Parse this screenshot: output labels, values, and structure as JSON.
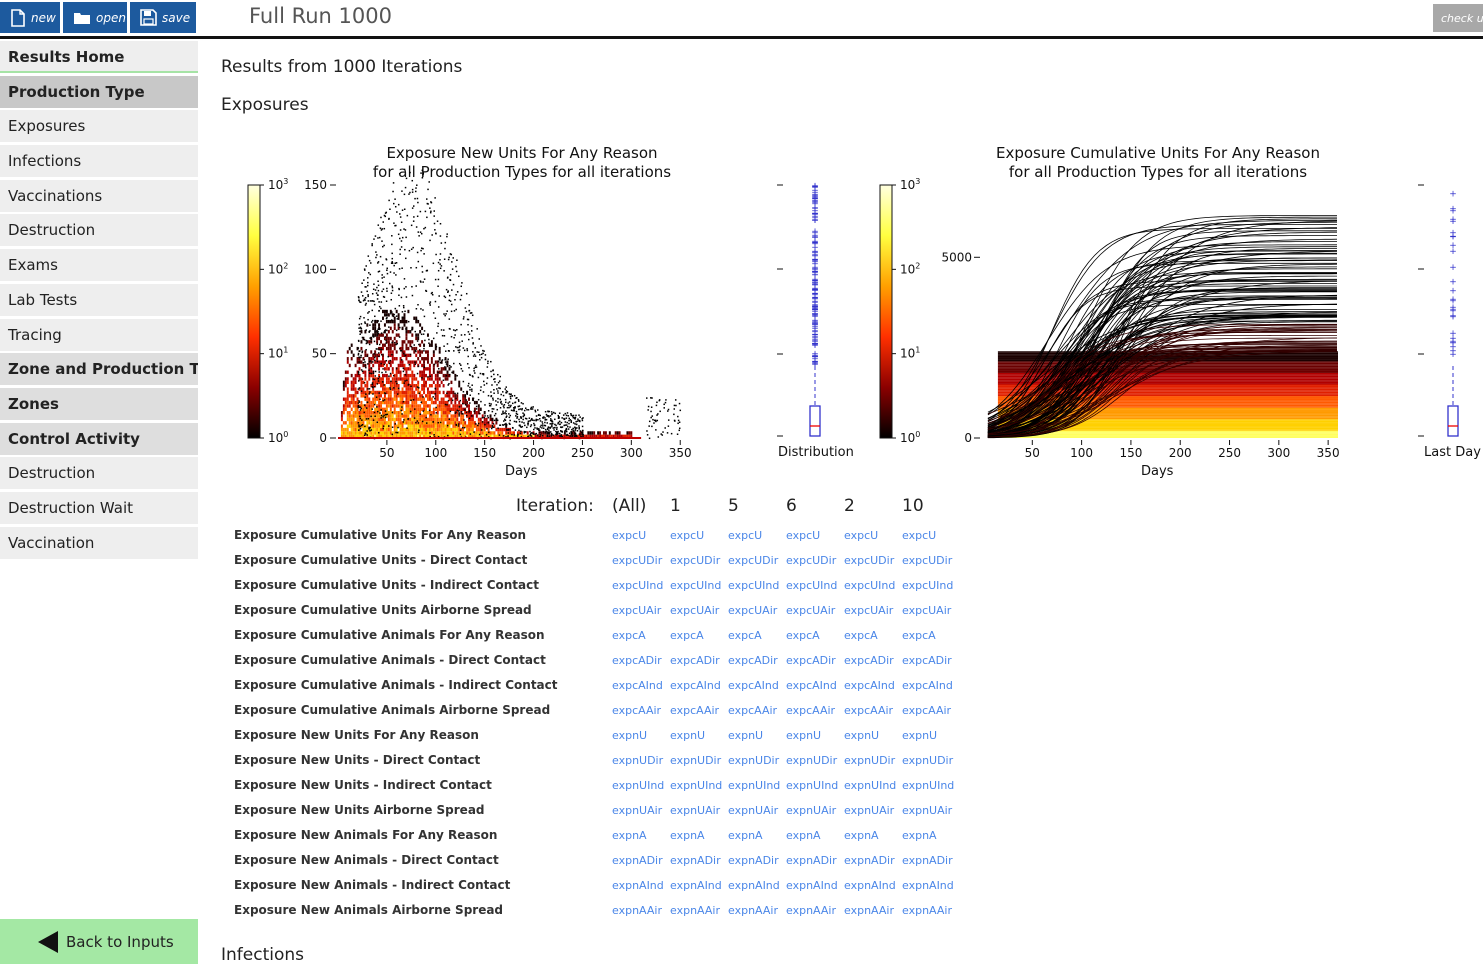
{
  "toolbar": {
    "new_label": "new",
    "open_label": "open",
    "save_label": "save",
    "check_label": "check up"
  },
  "page_title": "Full Run 1000",
  "sidebar": {
    "items": [
      {
        "label": "Results Home",
        "kind": "home"
      },
      {
        "label": "Production Type",
        "kind": "active"
      },
      {
        "label": "Exposures",
        "kind": "item"
      },
      {
        "label": "Infections",
        "kind": "item"
      },
      {
        "label": "Vaccinations",
        "kind": "item"
      },
      {
        "label": "Destruction",
        "kind": "item"
      },
      {
        "label": "Exams",
        "kind": "item"
      },
      {
        "label": "Lab Tests",
        "kind": "item"
      },
      {
        "label": "Tracing",
        "kind": "item"
      },
      {
        "label": "Zone and Production Type",
        "kind": "head"
      },
      {
        "label": "Zones",
        "kind": "head"
      },
      {
        "label": "Control Activity",
        "kind": "head"
      },
      {
        "label": "Destruction",
        "kind": "item"
      },
      {
        "label": "Destruction Wait",
        "kind": "item"
      },
      {
        "label": "Vaccination",
        "kind": "item"
      }
    ],
    "back_label": "Back to Inputs"
  },
  "main": {
    "results_heading": "Results from 1000 Iterations",
    "section_heading": "Exposures",
    "next_section_heading": "Infections",
    "iteration_label": "Iteration:",
    "iterations": [
      "(All)",
      "1",
      "5",
      "6",
      "2",
      "10"
    ],
    "rows": [
      {
        "label": "Exposure Cumulative Units For Any Reason",
        "code": "expcU"
      },
      {
        "label": "Exposure Cumulative Units - Direct Contact",
        "code": "expcUDir"
      },
      {
        "label": "Exposure Cumulative Units - Indirect Contact",
        "code": "expcUInd"
      },
      {
        "label": "Exposure Cumulative Units Airborne Spread",
        "code": "expcUAir"
      },
      {
        "label": "Exposure Cumulative Animals For Any Reason",
        "code": "expcA"
      },
      {
        "label": "Exposure Cumulative Animals - Direct Contact",
        "code": "expcADir"
      },
      {
        "label": "Exposure Cumulative Animals - Indirect Contact",
        "code": "expcAInd"
      },
      {
        "label": "Exposure Cumulative Animals Airborne Spread",
        "code": "expcAAir"
      },
      {
        "label": "Exposure New Units For Any Reason",
        "code": "expnU"
      },
      {
        "label": "Exposure New Units - Direct Contact",
        "code": "expnUDir"
      },
      {
        "label": "Exposure New Units - Indirect Contact",
        "code": "expnUInd"
      },
      {
        "label": "Exposure New Units Airborne Spread",
        "code": "expnUAir"
      },
      {
        "label": "Exposure New Animals For Any Reason",
        "code": "expnA"
      },
      {
        "label": "Exposure New Animals - Direct Contact",
        "code": "expnADir"
      },
      {
        "label": "Exposure New Animals - Indirect Contact",
        "code": "expnAInd"
      },
      {
        "label": "Exposure New Animals Airborne Spread",
        "code": "expnAAir"
      }
    ]
  },
  "chart_data": [
    {
      "type": "heatmap",
      "title_line1": "Exposure New Units For Any Reason",
      "title_line2": "for all Production Types for all iterations",
      "xlabel": "Days",
      "ylabel": "",
      "x_ticks": [
        "50",
        "100",
        "150",
        "200",
        "250",
        "300",
        "350"
      ],
      "y_ticks": [
        "0",
        "50",
        "100",
        "150"
      ],
      "colorbar_ticks": [
        "10",
        "10",
        "10",
        "10"
      ],
      "colorbar_exponents": [
        "0",
        "1",
        "2",
        "3"
      ],
      "xlim": [
        0,
        360
      ],
      "ylim": [
        0,
        150
      ],
      "colormap": [
        "#000000",
        "#8b0000",
        "#ff3000",
        "#ffa000",
        "#ffff40",
        "#ffffe0"
      ],
      "side_boxplot_label": "Distribution"
    },
    {
      "type": "heatmap",
      "title_line1": "Exposure Cumulative Units For Any Reason",
      "title_line2": "for all Production Types for all iterations",
      "xlabel": "Days",
      "ylabel": "",
      "x_ticks": [
        "50",
        "100",
        "150",
        "200",
        "250",
        "300",
        "350"
      ],
      "y_ticks": [
        "0",
        "5000"
      ],
      "colorbar_ticks": [
        "10",
        "10",
        "10",
        "10"
      ],
      "colorbar_exponents": [
        "0",
        "1",
        "2",
        "3"
      ],
      "xlim": [
        0,
        360
      ],
      "ylim": [
        0,
        7000
      ],
      "colormap": [
        "#000000",
        "#8b0000",
        "#ff3000",
        "#ffa000",
        "#ffff40",
        "#ffffe0"
      ],
      "side_boxplot_label": "Last Day"
    }
  ]
}
